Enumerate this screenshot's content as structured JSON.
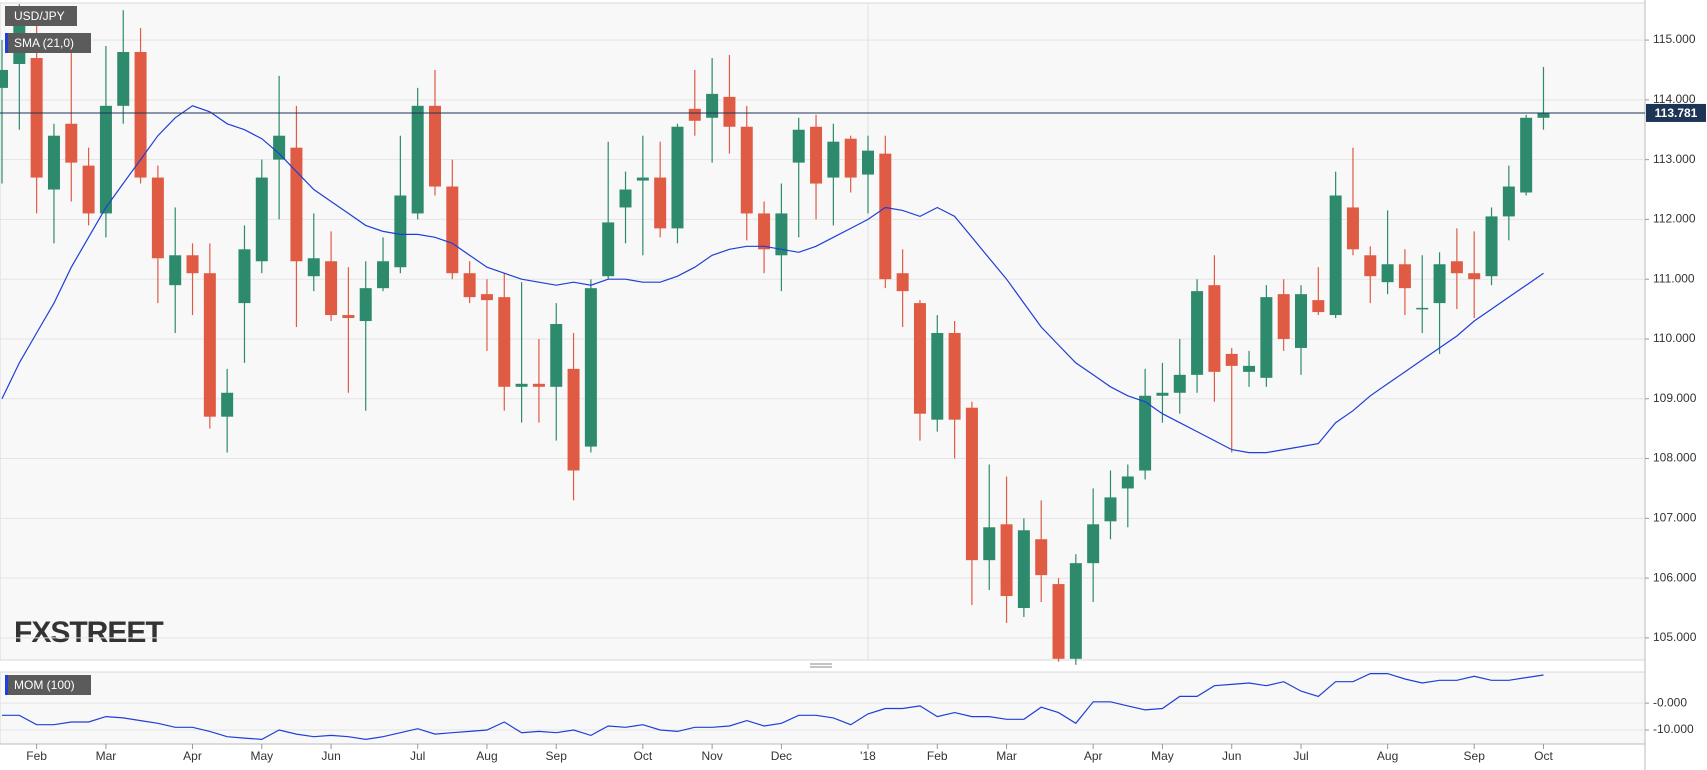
{
  "chart_data": [
    {
      "type": "candlestick",
      "title": "USD/JPY",
      "up_color": "#2d8a6c",
      "down_color": "#e05b44",
      "categories": [
        null,
        null,
        "Feb",
        null,
        null,
        null,
        "Mar",
        null,
        null,
        null,
        null,
        "Apr",
        null,
        null,
        null,
        "May",
        null,
        null,
        null,
        "Jun",
        null,
        null,
        null,
        null,
        "Jul",
        null,
        null,
        null,
        "Aug",
        null,
        null,
        null,
        "Sep",
        null,
        null,
        null,
        null,
        "Oct",
        null,
        null,
        null,
        "Nov",
        null,
        null,
        null,
        "Dec",
        null,
        null,
        null,
        null,
        "'18",
        null,
        null,
        null,
        "Feb",
        null,
        null,
        null,
        "Mar",
        null,
        null,
        null,
        null,
        "Apr",
        null,
        null,
        null,
        "May",
        null,
        null,
        null,
        "Jun",
        null,
        null,
        null,
        "Jul",
        null,
        null,
        null,
        null,
        "Aug",
        null,
        null,
        null,
        null,
        "Sep",
        null,
        null,
        null,
        "Oct"
      ],
      "open": [
        114.2,
        114.6,
        114.7,
        112.5,
        113.6,
        112.9,
        112.1,
        113.9,
        114.8,
        112.7,
        110.9,
        111.4,
        111.1,
        108.7,
        110.6,
        111.3,
        113.0,
        113.2,
        111.05,
        111.3,
        110.4,
        110.3,
        110.85,
        111.2,
        112.1,
        113.9,
        112.55,
        111.1,
        110.75,
        110.7,
        109.2,
        109.25,
        109.2,
        109.5,
        108.2,
        111.05,
        112.2,
        112.65,
        112.7,
        111.85,
        113.85,
        113.7,
        114.05,
        113.55,
        112.1,
        111.4,
        112.95,
        113.55,
        112.7,
        113.35,
        112.75,
        113.1,
        111.1,
        110.6,
        108.65,
        110.1,
        108.85,
        106.3,
        106.9,
        105.5,
        106.65,
        105.9,
        104.65,
        106.25,
        106.95,
        107.5,
        107.8,
        109.05,
        109.1,
        109.4,
        110.9,
        109.75,
        109.45,
        109.35,
        110.75,
        109.85,
        110.65,
        110.4,
        112.2,
        111.4,
        110.95,
        111.25,
        110.5,
        110.6,
        111.3,
        111.1,
        111.05,
        112.05,
        112.45,
        113.7
      ],
      "high": [
        115.0,
        115.6,
        115.3,
        113.6,
        115.0,
        113.2,
        114.9,
        115.5,
        115.2,
        112.9,
        112.2,
        111.6,
        111.6,
        109.5,
        111.9,
        113.0,
        114.4,
        113.9,
        112.1,
        111.8,
        111.2,
        111.3,
        111.7,
        113.4,
        114.2,
        114.5,
        113.0,
        111.3,
        111.0,
        111.1,
        110.95,
        110.0,
        110.6,
        110.1,
        111.0,
        113.3,
        112.8,
        113.4,
        113.3,
        113.6,
        114.5,
        114.7,
        114.75,
        113.9,
        112.3,
        112.6,
        113.7,
        113.75,
        113.6,
        113.4,
        113.4,
        113.4,
        111.5,
        110.65,
        110.4,
        110.3,
        108.95,
        107.9,
        107.7,
        107.0,
        107.3,
        106.0,
        106.4,
        107.5,
        107.8,
        107.9,
        109.5,
        109.6,
        110.0,
        111.0,
        111.4,
        109.85,
        109.8,
        110.9,
        111.0,
        110.9,
        111.2,
        112.8,
        113.2,
        111.55,
        112.15,
        111.5,
        111.4,
        111.45,
        111.85,
        111.8,
        112.2,
        112.9,
        113.75,
        114.55
      ],
      "low": [
        112.6,
        113.5,
        112.1,
        111.6,
        112.3,
        111.9,
        111.7,
        113.6,
        112.6,
        110.6,
        110.1,
        110.4,
        108.5,
        108.1,
        109.6,
        111.1,
        112.0,
        110.2,
        110.8,
        110.3,
        109.1,
        108.8,
        110.8,
        111.1,
        112.0,
        112.4,
        111.0,
        110.6,
        109.8,
        108.8,
        108.6,
        108.6,
        108.3,
        107.3,
        108.1,
        111.0,
        111.6,
        111.4,
        111.7,
        111.6,
        113.4,
        112.95,
        113.1,
        111.65,
        111.1,
        110.8,
        111.7,
        112.0,
        111.9,
        112.45,
        112.1,
        110.85,
        110.2,
        108.3,
        108.45,
        108.0,
        105.55,
        105.8,
        105.25,
        105.35,
        105.6,
        104.6,
        104.55,
        105.6,
        106.65,
        106.85,
        107.65,
        108.6,
        108.75,
        109.1,
        108.95,
        108.1,
        109.2,
        109.2,
        109.8,
        109.4,
        110.4,
        110.35,
        111.4,
        110.6,
        110.75,
        110.4,
        110.1,
        109.75,
        110.5,
        110.35,
        110.9,
        111.65,
        112.4,
        113.5
      ],
      "close": [
        114.5,
        115.4,
        112.7,
        113.4,
        112.95,
        112.1,
        113.9,
        114.8,
        112.7,
        111.35,
        111.4,
        111.1,
        108.7,
        109.1,
        111.5,
        112.7,
        113.4,
        111.3,
        111.35,
        110.4,
        110.35,
        110.85,
        111.3,
        112.4,
        113.9,
        112.55,
        111.1,
        110.7,
        110.65,
        109.2,
        109.25,
        109.2,
        110.25,
        107.8,
        110.85,
        111.95,
        112.5,
        112.7,
        111.85,
        113.55,
        113.65,
        114.1,
        113.55,
        112.1,
        111.5,
        112.1,
        113.5,
        112.6,
        113.3,
        112.7,
        113.15,
        111.0,
        110.8,
        108.75,
        110.1,
        108.65,
        106.3,
        106.85,
        105.7,
        106.8,
        106.05,
        104.65,
        106.25,
        106.9,
        107.35,
        107.7,
        109.05,
        109.1,
        109.4,
        110.8,
        109.45,
        109.55,
        109.55,
        110.7,
        110.0,
        110.75,
        110.45,
        112.4,
        111.5,
        111.05,
        111.25,
        110.85,
        110.52,
        111.25,
        111.1,
        111.0,
        112.05,
        112.55,
        113.7,
        113.78
      ],
      "sma": {
        "name": "SMA (21,0)",
        "color": "#1f3fd6",
        "values": [
          109.0,
          109.6,
          110.1,
          110.6,
          111.2,
          111.7,
          112.2,
          112.6,
          113.0,
          113.4,
          113.7,
          113.9,
          113.8,
          113.6,
          113.5,
          113.35,
          113.1,
          112.8,
          112.5,
          112.3,
          112.1,
          111.9,
          111.8,
          111.75,
          111.75,
          111.7,
          111.6,
          111.4,
          111.2,
          111.1,
          111.0,
          110.95,
          110.9,
          110.95,
          110.9,
          111.0,
          111.0,
          110.95,
          110.95,
          111.05,
          111.2,
          111.4,
          111.5,
          111.55,
          111.55,
          111.5,
          111.45,
          111.55,
          111.7,
          111.85,
          112.0,
          112.2,
          112.15,
          112.05,
          112.2,
          112.05,
          111.7,
          111.35,
          111.0,
          110.6,
          110.2,
          109.9,
          109.6,
          109.4,
          109.2,
          109.05,
          108.95,
          108.75,
          108.6,
          108.45,
          108.3,
          108.15,
          108.1,
          108.1,
          108.15,
          108.2,
          108.25,
          108.6,
          108.8,
          109.05,
          109.25,
          109.45,
          109.65,
          109.85,
          110.05,
          110.3,
          110.5,
          110.7,
          110.9,
          111.1
        ]
      },
      "last_price": 113.781,
      "ylim": [
        104.63,
        115.62
      ],
      "yticks": [
        {
          "value": 105,
          "label": "105.000"
        },
        {
          "value": 106,
          "label": "106.000"
        },
        {
          "value": 107,
          "label": "107.000"
        },
        {
          "value": 108,
          "label": "108.000"
        },
        {
          "value": 109,
          "label": "109.000"
        },
        {
          "value": 110,
          "label": "110.000"
        },
        {
          "value": 111,
          "label": "111.000"
        },
        {
          "value": 112,
          "label": "112.000"
        },
        {
          "value": 113,
          "label": "113.000"
        },
        {
          "value": 114,
          "label": "114.000"
        },
        {
          "value": 115,
          "label": "115.000"
        }
      ],
      "grid": true
    },
    {
      "type": "line",
      "title": "MOM (100)",
      "color": "#1f3fd6",
      "values": [
        -4.5,
        -4.5,
        -8,
        -8,
        -7,
        -7,
        -5,
        -5.5,
        -6.5,
        -7.5,
        -9,
        -9,
        -10.5,
        -12.5,
        -13,
        -13.5,
        -10,
        -11.5,
        -12.5,
        -12,
        -12.5,
        -13.5,
        -12.5,
        -11,
        -9.5,
        -11.5,
        -11,
        -10.5,
        -10,
        -7,
        -11,
        -10.5,
        -11,
        -10,
        -12,
        -8.5,
        -9,
        -8,
        -10,
        -10.5,
        -9,
        -9,
        -8.5,
        -6.5,
        -8.5,
        -7.5,
        -4.5,
        -4.5,
        -5.5,
        -8,
        -4,
        -2,
        -2,
        -1,
        -5,
        -3.5,
        -5,
        -5,
        -6,
        -6,
        -1.5,
        -3.5,
        -7.5,
        0.5,
        0.5,
        -1,
        -2.5,
        -2,
        2.5,
        2.5,
        6.5,
        7,
        7.5,
        6.5,
        8,
        4.5,
        2.5,
        8,
        8,
        11,
        11,
        9,
        7.5,
        8.5,
        8.5,
        10,
        8.5,
        8.5,
        9.5,
        10.5
      ],
      "ylim": [
        -15.2,
        11.6
      ],
      "yticks": [
        {
          "value": 0,
          "label": "-0.000"
        },
        {
          "value": -10,
          "label": "-10.000"
        }
      ],
      "grid": true
    }
  ],
  "watermark": "FXSTREET"
}
